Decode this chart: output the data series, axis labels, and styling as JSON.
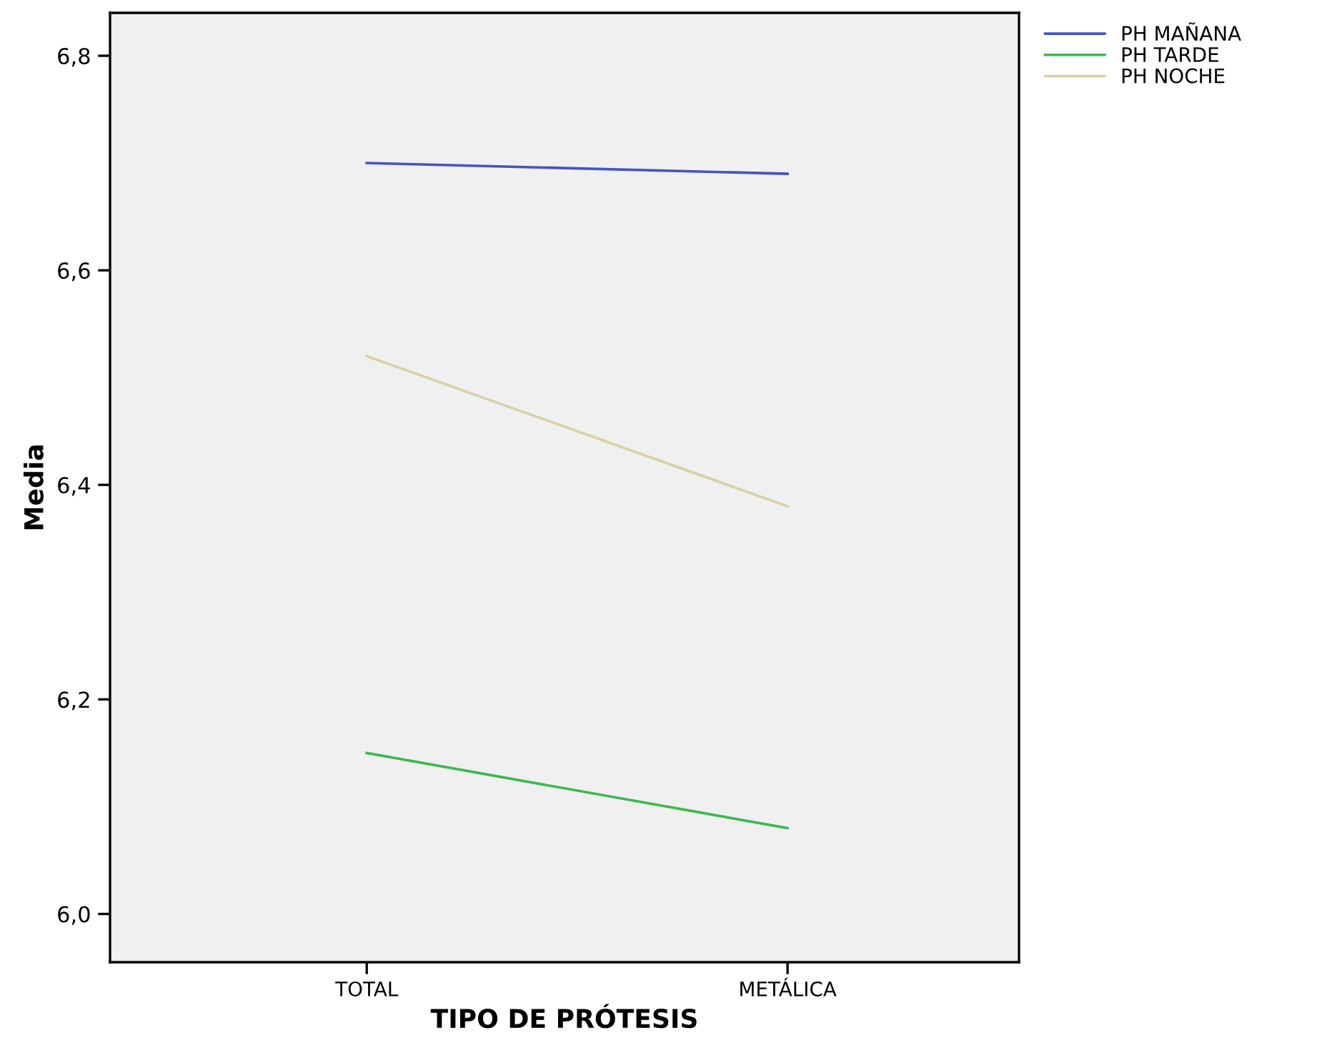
{
  "chart_data": {
    "type": "line",
    "xlabel": "TIPO DE PRÓTESIS",
    "ylabel": "Media",
    "categories": [
      "TOTAL",
      "METÁLICA"
    ],
    "series": [
      {
        "name": "PH MAÑANA",
        "color": "#4455c0",
        "values": [
          6.7,
          6.69
        ]
      },
      {
        "name": "PH TARDE",
        "color": "#3cb850",
        "values": [
          6.15,
          6.08
        ]
      },
      {
        "name": "PH NOCHE",
        "color": "#d6d2a6",
        "values": [
          6.52,
          6.38
        ]
      }
    ],
    "ylim": [
      5.955,
      6.84
    ],
    "yticks": [
      {
        "value": 6.0,
        "label": "6,0"
      },
      {
        "value": 6.2,
        "label": "6,2"
      },
      {
        "value": 6.4,
        "label": "6,4"
      },
      {
        "value": 6.6,
        "label": "6,6"
      },
      {
        "value": 6.8,
        "label": "6,8"
      }
    ],
    "grid": false,
    "legend": "top right",
    "marker": "none",
    "line_style": "solid"
  }
}
